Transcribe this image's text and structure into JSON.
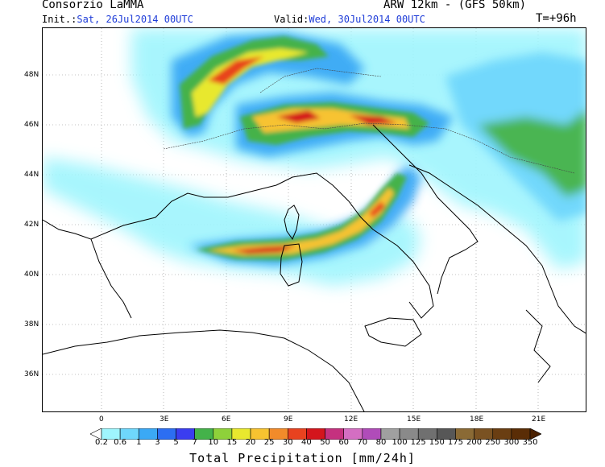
{
  "header": {
    "provider": "Consorzio LaMMA",
    "model": "ARW 12km - (GFS 50km)",
    "init_label": "Init.:",
    "init_value": "Sat, 26Jul2014 00UTC",
    "valid_label": "Valid:",
    "valid_value": "Wed, 30Jul2014 00UTC",
    "lead_time": "T=+96h"
  },
  "axes": {
    "lat_labels": [
      "48N",
      "46N",
      "44N",
      "42N",
      "40N",
      "38N",
      "36N"
    ],
    "lon_labels": [
      "0",
      "3E",
      "6E",
      "9E",
      "12E",
      "15E",
      "18E",
      "21E"
    ]
  },
  "colorbar": {
    "title": "Total Precipitation [mm/24h]",
    "thresholds": [
      "0.2",
      "0.6",
      "1",
      "3",
      "5",
      "7",
      "10",
      "15",
      "20",
      "25",
      "30",
      "40",
      "50",
      "60",
      "70",
      "80",
      "100",
      "125",
      "150",
      "175",
      "200",
      "250",
      "300",
      "350"
    ],
    "colors": [
      "#ffffff",
      "#9ff5fd",
      "#6fd7fc",
      "#3ba9f5",
      "#2c6ef2",
      "#3a3df0",
      "#44b24a",
      "#8ed13a",
      "#e8e82e",
      "#f7c330",
      "#f28b2a",
      "#e8421f",
      "#d4151c",
      "#c5317f",
      "#d46ec2",
      "#b04cb9",
      "#a0a0a0",
      "#8a8a8a",
      "#707070",
      "#575757",
      "#8a6a35",
      "#7a5222",
      "#6a3e12",
      "#5a2d06",
      "#4a2000"
    ]
  }
}
